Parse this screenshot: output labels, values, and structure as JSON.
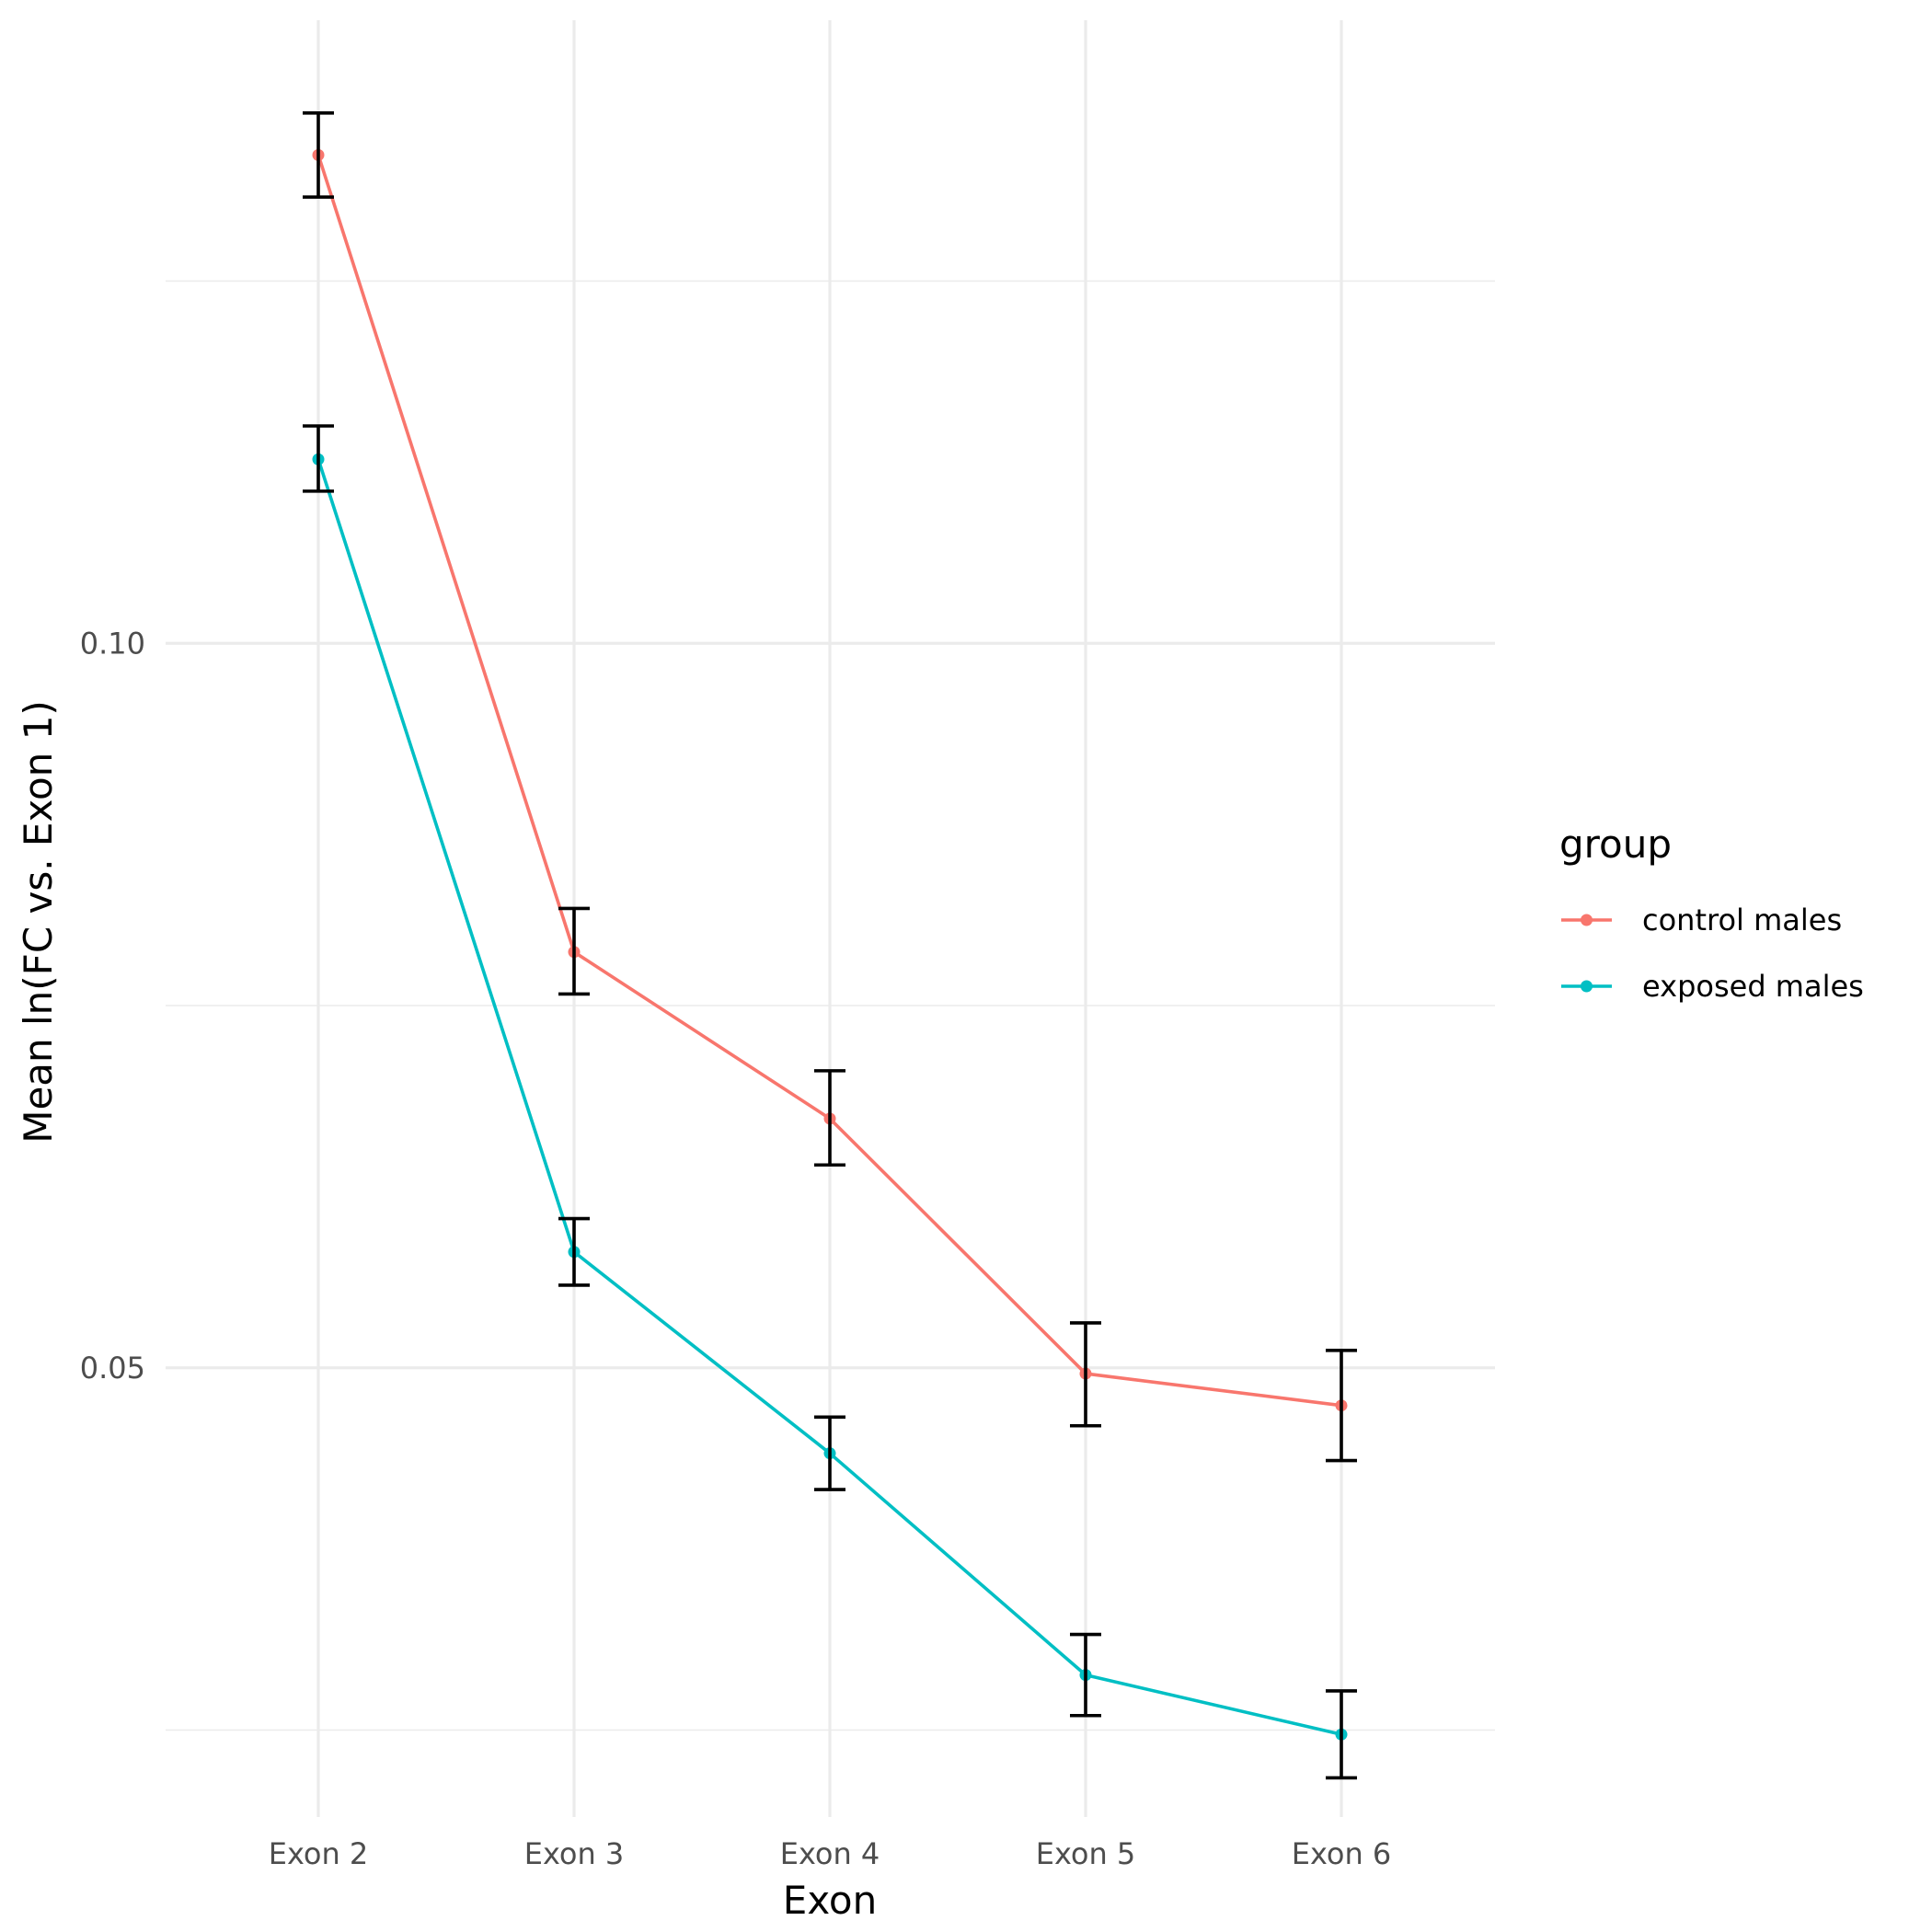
{
  "chart_data": {
    "type": "line",
    "title": "",
    "xlabel": "Exon",
    "ylabel": "Mean ln(FC vs. Exon 1)",
    "categories": [
      "Exon 2",
      "Exon 3",
      "Exon 4",
      "Exon 5",
      "Exon 6"
    ],
    "ylim": [
      0.019,
      0.143
    ],
    "y_major_ticks": [
      0.05,
      0.1
    ],
    "y_minor_ticks": [
      0.025,
      0.075,
      0.125
    ],
    "grid": true,
    "error_bar_color": "#000000",
    "series": [
      {
        "name": "control males",
        "color": "#F8766D",
        "values": [
          0.1337,
          0.0787,
          0.0672,
          0.0496,
          0.0474
        ],
        "err_low": [
          0.1308,
          0.0758,
          0.064,
          0.046,
          0.0436
        ],
        "err_high": [
          0.1366,
          0.0817,
          0.0705,
          0.0531,
          0.0512
        ]
      },
      {
        "name": "exposed males",
        "color": "#00BFC4",
        "values": [
          0.1127,
          0.058,
          0.0441,
          0.0288,
          0.0247
        ],
        "err_low": [
          0.1105,
          0.0557,
          0.0416,
          0.026,
          0.0217
        ],
        "err_high": [
          0.115,
          0.0603,
          0.0466,
          0.0316,
          0.0277
        ]
      }
    ],
    "legend": {
      "title": "group",
      "position": "right"
    }
  }
}
